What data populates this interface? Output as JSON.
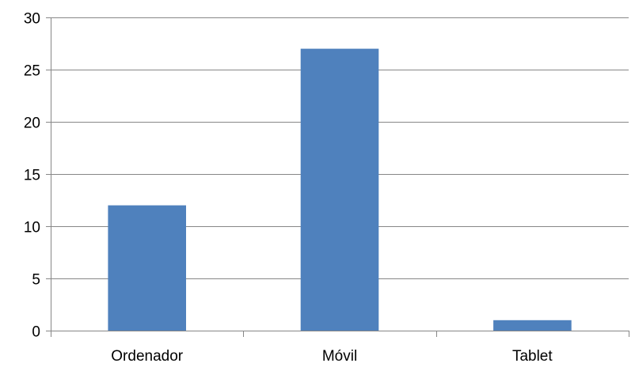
{
  "chart_data": {
    "type": "bar",
    "categories": [
      "Ordenador",
      "Móvil",
      "Tablet"
    ],
    "values": [
      12,
      27,
      1
    ],
    "ylim": [
      0,
      30
    ],
    "y_ticks": [
      0,
      5,
      10,
      15,
      20,
      25,
      30
    ],
    "grid": true,
    "legend": "none",
    "bar_color": "#4F81BD",
    "grid_color": "#878787",
    "axis_color": "#878787"
  }
}
